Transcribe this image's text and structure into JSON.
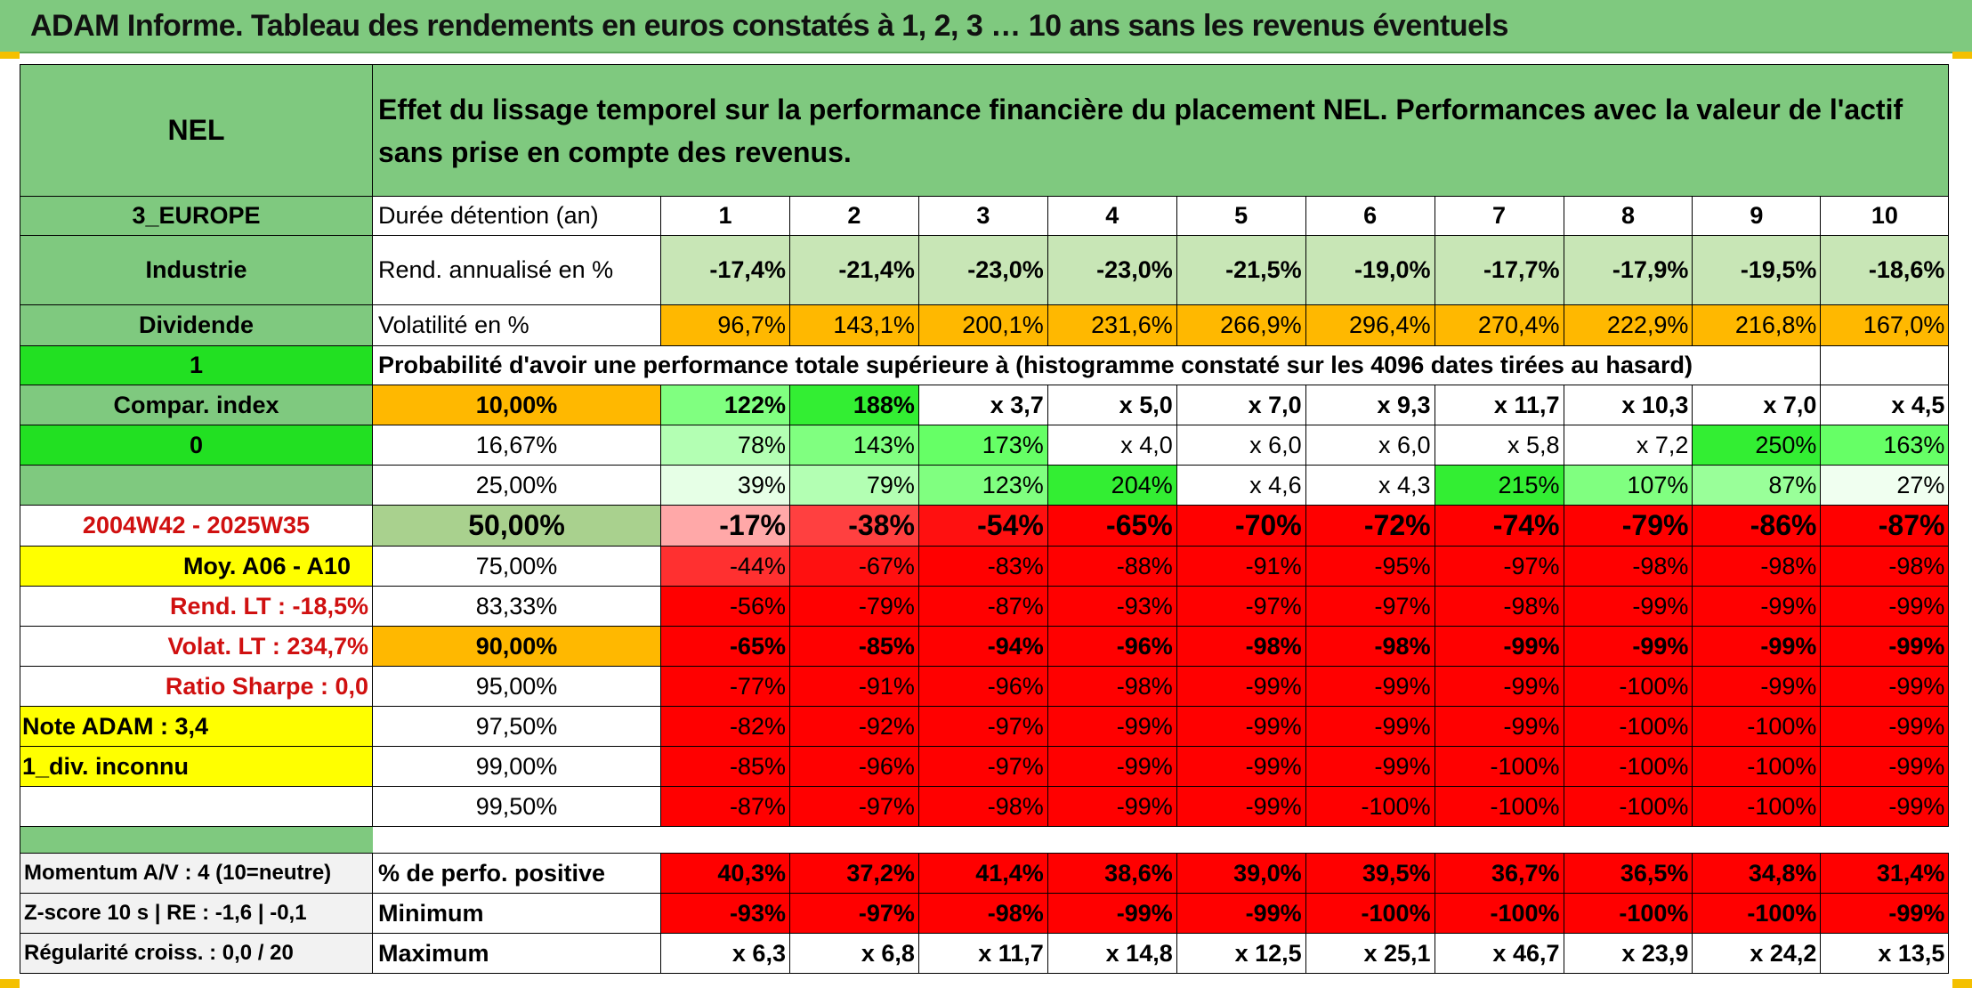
{
  "title": "ADAM Informe. Tableau des rendements en euros constatés à 1, 2, 3 … 10 ans sans les revenus éventuels",
  "colors": {
    "green_header": "#7fc97f",
    "bright_green": "#22e022",
    "yellow": "#ffff00",
    "orange": "#ffb800",
    "red": "#ff0000",
    "gold_frame": "#f4c000"
  },
  "left_panel": {
    "code": "NEL",
    "region": "3_EUROPE",
    "sector": "Industrie",
    "type": "Dividende",
    "flag1": "1",
    "compar": "Compar. index",
    "flag0": "0",
    "period": "2004W42 - 2025W35",
    "moy": "Moy. A06 - A10",
    "rend_lt": "Rend. LT :   -18,5%",
    "volat_lt": "Volat. LT :   234,7%",
    "sharpe": "Ratio Sharpe :    0,0",
    "note": "Note ADAM : 3,4",
    "div": "1_div. inconnu"
  },
  "header_text": "Effet du lissage temporel sur la performance financière du placement NEL. Performances avec la valeur de l'actif sans prise en compte des revenus.",
  "labels": {
    "duree": "Durée détention (an)",
    "rend": "Rend. annualisé en %",
    "vol": "Volatilité en %",
    "proba": "Probabilité d'avoir une performance totale supérieure à (histogramme constaté sur les 4096 dates tirées au hasard)",
    "pos": "% de perfo. positive",
    "min": "Minimum",
    "max": "Maximum"
  },
  "years": [
    "1",
    "2",
    "3",
    "4",
    "5",
    "6",
    "7",
    "8",
    "9",
    "10"
  ],
  "rend": [
    "-17,4%",
    "-21,4%",
    "-23,0%",
    "-23,0%",
    "-21,5%",
    "-19,0%",
    "-17,7%",
    "-17,9%",
    "-19,5%",
    "-18,6%"
  ],
  "vol": [
    "96,7%",
    "143,1%",
    "200,1%",
    "231,6%",
    "266,9%",
    "296,4%",
    "270,4%",
    "222,9%",
    "216,8%",
    "167,0%"
  ],
  "prob_rows": [
    {
      "p": "10,00%",
      "vals": [
        "122%",
        "188%",
        "x 3,7",
        "x 5,0",
        "x 7,0",
        "x 9,3",
        "x 11,7",
        "x 10,3",
        "x 7,0",
        "x 4,5"
      ]
    },
    {
      "p": "16,67%",
      "vals": [
        "78%",
        "143%",
        "173%",
        "x 4,0",
        "x 6,0",
        "x 6,0",
        "x 5,8",
        "x 7,2",
        "250%",
        "163%"
      ]
    },
    {
      "p": "25,00%",
      "vals": [
        "39%",
        "79%",
        "123%",
        "204%",
        "x 4,6",
        "x 4,3",
        "215%",
        "107%",
        "87%",
        "27%"
      ]
    },
    {
      "p": "50,00%",
      "vals": [
        "-17%",
        "-38%",
        "-54%",
        "-65%",
        "-70%",
        "-72%",
        "-74%",
        "-79%",
        "-86%",
        "-87%"
      ]
    },
    {
      "p": "75,00%",
      "vals": [
        "-44%",
        "-67%",
        "-83%",
        "-88%",
        "-91%",
        "-95%",
        "-97%",
        "-98%",
        "-98%",
        "-98%"
      ]
    },
    {
      "p": "83,33%",
      "vals": [
        "-56%",
        "-79%",
        "-87%",
        "-93%",
        "-97%",
        "-97%",
        "-98%",
        "-99%",
        "-99%",
        "-99%"
      ]
    },
    {
      "p": "90,00%",
      "vals": [
        "-65%",
        "-85%",
        "-94%",
        "-96%",
        "-98%",
        "-98%",
        "-99%",
        "-99%",
        "-99%",
        "-99%"
      ]
    },
    {
      "p": "95,00%",
      "vals": [
        "-77%",
        "-91%",
        "-96%",
        "-98%",
        "-99%",
        "-99%",
        "-99%",
        "-100%",
        "-99%",
        "-99%"
      ]
    },
    {
      "p": "97,50%",
      "vals": [
        "-82%",
        "-92%",
        "-97%",
        "-99%",
        "-99%",
        "-99%",
        "-99%",
        "-100%",
        "-100%",
        "-99%"
      ]
    },
    {
      "p": "99,00%",
      "vals": [
        "-85%",
        "-96%",
        "-97%",
        "-99%",
        "-99%",
        "-99%",
        "-100%",
        "-100%",
        "-100%",
        "-99%"
      ]
    },
    {
      "p": "99,50%",
      "vals": [
        "-87%",
        "-97%",
        "-98%",
        "-99%",
        "-99%",
        "-100%",
        "-100%",
        "-100%",
        "-100%",
        "-99%"
      ]
    }
  ],
  "bottom": {
    "momentum": "Momentum A/V : 4 (10=neutre)",
    "zscore": "Z-score 10 s | RE : -1,6 | -0,1",
    "regul": "Régularité croiss. : 0,0 / 20",
    "pos": [
      "40,3%",
      "37,2%",
      "41,4%",
      "38,6%",
      "39,0%",
      "39,5%",
      "36,7%",
      "36,5%",
      "34,8%",
      "31,4%"
    ],
    "min": [
      "-93%",
      "-97%",
      "-98%",
      "-99%",
      "-99%",
      "-100%",
      "-100%",
      "-100%",
      "-100%",
      "-99%"
    ],
    "max": [
      "x 6,3",
      "x 6,8",
      "x 11,7",
      "x 14,8",
      "x 12,5",
      "x 25,1",
      "x 46,7",
      "x 23,9",
      "x 24,2",
      "x 13,5"
    ]
  }
}
